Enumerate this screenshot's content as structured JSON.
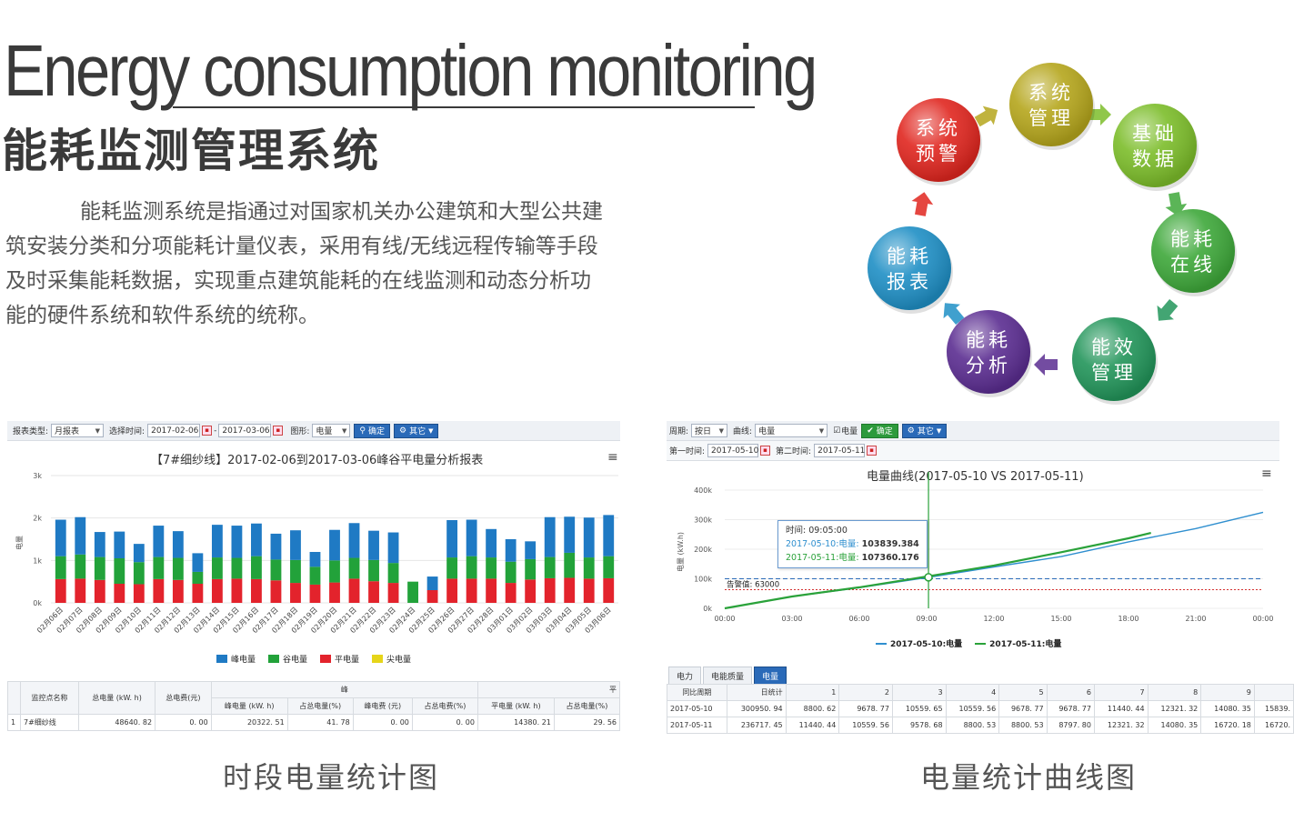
{
  "header": {
    "title_en": "Energy consumption monitoring",
    "title_cn": "能耗监测管理系统",
    "intro": "能耗监测系统是指通过对国家机关办公建筑和大型公共建筑安装分类和分项能耗计量仪表，采用有线/无线远程传输等手段及时采集能耗数据，实现重点建筑能耗的在线监测和动态分析功能的硬件系统和软件系统的统称。"
  },
  "cycle": {
    "nodes": [
      {
        "line1": "系统",
        "line2": "管理",
        "color": "#b5a61c"
      },
      {
        "line1": "基础",
        "line2": "数据",
        "color": "#7cbd2a"
      },
      {
        "line1": "能耗",
        "line2": "在线",
        "color": "#3ea83a"
      },
      {
        "line1": "能效",
        "line2": "管理",
        "color": "#22955a"
      },
      {
        "line1": "能耗",
        "line2": "分析",
        "color": "#5b2d91"
      },
      {
        "line1": "能耗",
        "line2": "报表",
        "color": "#1f8fc5"
      },
      {
        "line1": "系统",
        "line2": "预警",
        "color": "#e0261f"
      }
    ]
  },
  "left_panel": {
    "toolbar": {
      "report_type_label": "报表类型:",
      "report_type_value": "月报表",
      "time_label": "选择时间:",
      "start_date": "2017-02-06",
      "dash": "-",
      "end_date": "2017-03-06",
      "graph_label": "图形:",
      "graph_value": "电量",
      "confirm_label": "确定",
      "other_label": "其它"
    },
    "chart_title": "【7#细纱线】2017-02-06到2017-03-06峰谷平电量分析报表",
    "menu_icon": "≡",
    "table": {
      "h_name": "监控点名称",
      "h_total": "总电量 (kW. h)",
      "h_fee": "总电费(元)",
      "h_peak_group": "峰",
      "h_flat_group": "平",
      "h_peak_kwh": "峰电量 (kW. h)",
      "h_peak_pct": "占总电量(%)",
      "h_peak_fee": "峰电费 (元)",
      "h_peak_fee_pct": "占总电费(%)",
      "h_flat_kwh": "平电量 (kW. h)",
      "h_flat_pct": "占总电量(%)",
      "row": {
        "idx": "1",
        "name": "7#细纱线",
        "total": "48640. 82",
        "fee": "0. 00",
        "peak_kwh": "20322. 51",
        "peak_pct": "41. 78",
        "peak_fee": "0. 00",
        "peak_fee_pct": "0. 00",
        "flat_kwh": "14380. 21",
        "flat_pct": "29. 56"
      }
    }
  },
  "right_panel": {
    "toolbar": {
      "period_label": "周期:",
      "period_value": "按日",
      "curve_label": "曲线:",
      "curve_value": "电量",
      "check_label": "电量",
      "confirm_label": "确定",
      "other_label": "其它",
      "first_time_label": "第一时间:",
      "first_time": "2017-05-10",
      "second_time_label": "第二时间:",
      "second_time": "2017-05-11"
    },
    "chart_title": "电量曲线(2017-05-10  VS  2017-05-11)",
    "menu_icon": "≡",
    "tooltip": {
      "time_line": "时间: 09:05:00",
      "s1_label": "2017-05-10:电量:",
      "s1_value": "103839.384",
      "s2_label": "2017-05-11:电量:",
      "s2_value": "107360.176"
    },
    "tabs": [
      "电力",
      "电能质量",
      "电量"
    ],
    "table": {
      "h_period": "同比周期",
      "h_day": "日统计",
      "h_cols": [
        "1",
        "2",
        "3",
        "4",
        "5",
        "6",
        "7",
        "8",
        "9"
      ],
      "rows": [
        {
          "period": "2017-05-10",
          "day": "300950. 94",
          "vals": [
            "8800. 62",
            "9678. 77",
            "10559. 65",
            "10559. 56",
            "9678. 77",
            "9678. 77",
            "11440. 44",
            "12321. 32",
            "14080. 35"
          ],
          "extra": "15839."
        },
        {
          "period": "2017-05-11",
          "day": "236717. 45",
          "vals": [
            "11440. 44",
            "10559. 56",
            "9578. 68",
            "8800. 53",
            "8800. 53",
            "8797. 80",
            "12321. 32",
            "14080. 35",
            "16720. 18"
          ],
          "extra": "16720."
        }
      ]
    }
  },
  "captions": {
    "left": "时段电量统计图",
    "right": "电量统计曲线图"
  },
  "chart_data": [
    {
      "type": "bar",
      "stacked": true,
      "title": "【7#细纱线】2017-02-06到2017-03-06峰谷平电量分析报表",
      "xlabel": "",
      "ylabel": "电量",
      "ylim": [
        0,
        3000
      ],
      "yticks": [
        "0k",
        "1k",
        "2k",
        "3k"
      ],
      "categories": [
        "02月06日",
        "02月07日",
        "02月08日",
        "02月09日",
        "02月10日",
        "02月11日",
        "02月12日",
        "02月13日",
        "02月14日",
        "02月15日",
        "02月16日",
        "02月17日",
        "02月18日",
        "02月19日",
        "02月20日",
        "02月21日",
        "02月22日",
        "02月23日",
        "02月24日",
        "02月25日",
        "02月26日",
        "02月27日",
        "02月28日",
        "03月01日",
        "03月02日",
        "03月03日",
        "03月04日",
        "03月05日",
        "03月06日"
      ],
      "series": [
        {
          "name": "平电量",
          "color": "#e3232c",
          "values": [
            560,
            570,
            540,
            450,
            440,
            560,
            540,
            450,
            560,
            570,
            560,
            530,
            470,
            430,
            480,
            570,
            510,
            470,
            0,
            300,
            570,
            570,
            570,
            470,
            550,
            580,
            590,
            570,
            580
          ]
        },
        {
          "name": "谷电量",
          "color": "#22a23a",
          "values": [
            540,
            570,
            540,
            600,
            520,
            520,
            520,
            280,
            510,
            490,
            540,
            490,
            540,
            420,
            520,
            490,
            500,
            470,
            500,
            0,
            500,
            530,
            500,
            500,
            480,
            500,
            590,
            500,
            520
          ]
        },
        {
          "name": "峰电量",
          "color": "#1f7ac4",
          "values": [
            860,
            880,
            590,
            630,
            430,
            740,
            630,
            440,
            770,
            760,
            770,
            610,
            700,
            350,
            720,
            820,
            690,
            720,
            0,
            320,
            880,
            860,
            670,
            530,
            420,
            940,
            850,
            940,
            970
          ]
        },
        {
          "name": "尖电量",
          "color": "#e6d51a",
          "values": [
            0,
            0,
            0,
            0,
            0,
            0,
            0,
            0,
            0,
            0,
            0,
            0,
            0,
            0,
            0,
            0,
            0,
            0,
            0,
            0,
            0,
            0,
            0,
            0,
            0,
            0,
            0,
            0,
            0
          ]
        }
      ],
      "legend": "bottom"
    },
    {
      "type": "line",
      "title": "电量曲线(2017-05-10  VS  2017-05-11)",
      "xlabel": "",
      "ylabel": "电量 (kW.h)",
      "x_ticks": [
        "00:00",
        "03:00",
        "06:00",
        "09:00",
        "12:00",
        "15:00",
        "18:00",
        "21:00",
        "00:00"
      ],
      "y_ticks": [
        "0k",
        "100k",
        "200k",
        "300k",
        "400k"
      ],
      "ylim": [
        0,
        400000
      ],
      "series": [
        {
          "name": "2017-05-10:电量",
          "color": "#2f8fcf",
          "points": [
            [
              0,
              0
            ],
            [
              3,
              40000
            ],
            [
              6,
              70000
            ],
            [
              9,
              103839
            ],
            [
              12,
              140000
            ],
            [
              15,
              175000
            ],
            [
              18,
              225000
            ],
            [
              21,
              270000
            ],
            [
              24,
              325000
            ]
          ]
        },
        {
          "name": "2017-05-11:电量",
          "color": "#2aa23a",
          "points": [
            [
              0,
              0
            ],
            [
              3,
              40000
            ],
            [
              6,
              71000
            ],
            [
              9,
              107360
            ],
            [
              12,
              145000
            ],
            [
              15,
              190000
            ],
            [
              18,
              237000
            ],
            [
              19,
              255000
            ]
          ]
        }
      ],
      "reference_lines": [
        {
          "label": "告警值: 63000",
          "value": 63000,
          "color": "#d43030",
          "style": "dotted"
        },
        {
          "label": "",
          "value": 100000,
          "color": "#2a6ab8",
          "style": "dashed"
        }
      ],
      "cursor_x": "09:05:00",
      "legend": "bottom"
    }
  ]
}
